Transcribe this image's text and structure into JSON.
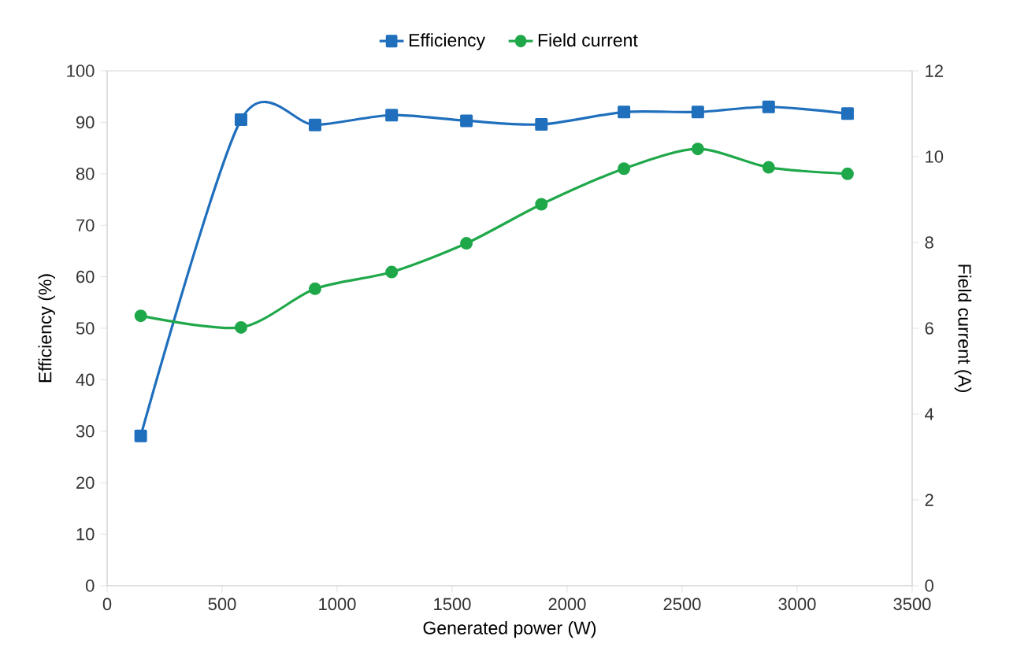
{
  "chart_data": {
    "type": "line",
    "xlabel": "Generated power (W)",
    "ylabel": "Efficiency (%)",
    "y2label": "Field current (A)",
    "x": [
      146,
      582,
      904,
      1237,
      1562,
      1888,
      2247,
      2568,
      2876,
      3219
    ],
    "series": [
      {
        "name": "Efficiency",
        "color": "#1f6fbd",
        "marker": "square",
        "values": [
          29.1,
          90.5,
          89.5,
          91.4,
          90.3,
          89.6,
          92,
          92,
          93,
          91.7
        ]
      },
      {
        "name": "Field current",
        "color": "#1fa84a",
        "marker": "circle",
        "axis": "y2",
        "values": [
          6.29,
          6.02,
          6.92,
          7.31,
          7.98,
          8.89,
          9.72,
          10.18,
          9.75,
          9.6
        ]
      }
    ],
    "xlim": [
      0,
      3500
    ],
    "xticks": [
      0,
      500,
      1000,
      1500,
      2000,
      2500,
      3000,
      3500
    ],
    "ylim": [
      0,
      100
    ],
    "yticks": [
      0,
      10,
      20,
      30,
      40,
      50,
      60,
      70,
      80,
      90,
      100
    ],
    "y2lim": [
      0,
      12
    ],
    "y2ticks": [
      0,
      2,
      4,
      6,
      8,
      10,
      12
    ],
    "legend": "top",
    "grid": false,
    "line_style": "solid"
  }
}
